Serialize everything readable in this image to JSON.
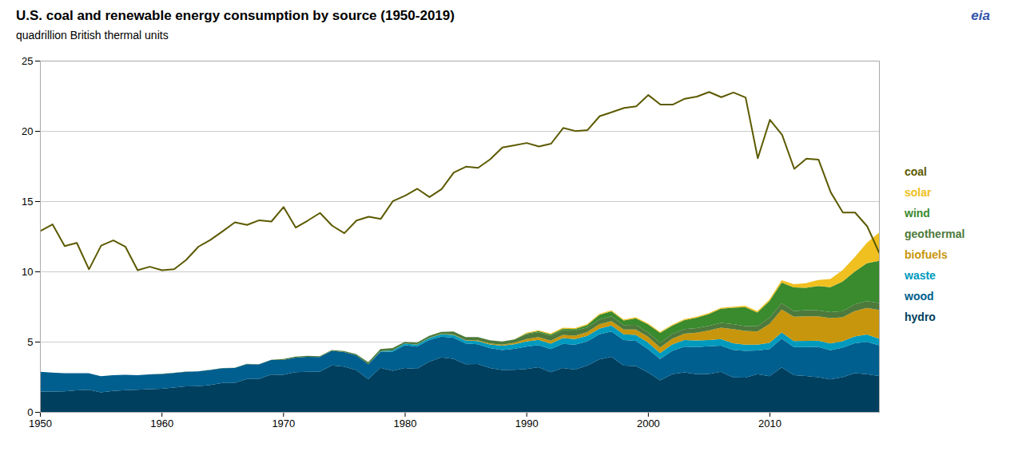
{
  "chart_data": {
    "type": "area",
    "title": "U.S. coal and renewable energy consumption by source (1950-2019)",
    "subtitle": "quadrillion British thermal units",
    "annotations": [
      "eia"
    ],
    "stacked": true,
    "grid": "y",
    "legend": "right",
    "x": [
      1950,
      1951,
      1952,
      1953,
      1954,
      1955,
      1956,
      1957,
      1958,
      1959,
      1960,
      1961,
      1962,
      1963,
      1964,
      1965,
      1966,
      1967,
      1968,
      1969,
      1970,
      1971,
      1972,
      1973,
      1974,
      1975,
      1976,
      1977,
      1978,
      1979,
      1980,
      1981,
      1982,
      1983,
      1984,
      1985,
      1986,
      1987,
      1988,
      1989,
      1990,
      1991,
      1992,
      1993,
      1994,
      1995,
      1996,
      1997,
      1998,
      1999,
      2000,
      2001,
      2002,
      2003,
      2004,
      2005,
      2006,
      2007,
      2008,
      2009,
      2010,
      2011,
      2012,
      2013,
      2014,
      2015,
      2016,
      2017,
      2018,
      2019
    ],
    "xlim": [
      1950,
      2019
    ],
    "xticks": [
      1950,
      1960,
      1970,
      1980,
      1990,
      2000,
      2010
    ],
    "ylim": [
      0,
      25
    ],
    "yticks": [
      0,
      5,
      10,
      15,
      20,
      25
    ],
    "series": [
      {
        "name": "hydro",
        "type": "area",
        "color": "#003f5e",
        "values": [
          1.45,
          1.45,
          1.47,
          1.53,
          1.57,
          1.39,
          1.49,
          1.55,
          1.57,
          1.62,
          1.65,
          1.74,
          1.82,
          1.83,
          1.92,
          2.06,
          2.06,
          2.35,
          2.35,
          2.65,
          2.64,
          2.83,
          2.86,
          2.86,
          3.31,
          3.22,
          2.98,
          2.33,
          3.14,
          2.93,
          3.12,
          3.07,
          3.57,
          3.88,
          3.78,
          3.4,
          3.41,
          3.13,
          2.98,
          3.0,
          3.05,
          3.18,
          2.83,
          3.13,
          3.01,
          3.29,
          3.73,
          3.92,
          3.3,
          3.27,
          2.81,
          2.24,
          2.68,
          2.81,
          2.69,
          2.7,
          2.85,
          2.46,
          2.45,
          2.68,
          2.54,
          3.17,
          2.62,
          2.56,
          2.47,
          2.32,
          2.47,
          2.75,
          2.69,
          2.56
        ]
      },
      {
        "name": "wood",
        "type": "area",
        "color": "#005f8e",
        "values": [
          1.4,
          1.35,
          1.29,
          1.22,
          1.18,
          1.15,
          1.12,
          1.09,
          1.04,
          1.05,
          1.05,
          1.03,
          1.04,
          1.05,
          1.07,
          1.05,
          1.06,
          1.05,
          1.03,
          1.04,
          1.05,
          1.04,
          1.06,
          1.04,
          1.03,
          1.04,
          1.05,
          1.07,
          1.13,
          1.36,
          1.63,
          1.58,
          1.54,
          1.47,
          1.51,
          1.47,
          1.4,
          1.41,
          1.43,
          1.49,
          1.6,
          1.58,
          1.64,
          1.72,
          1.77,
          1.73,
          1.79,
          1.81,
          1.82,
          1.79,
          1.67,
          1.52,
          1.66,
          1.84,
          1.93,
          1.97,
          1.87,
          1.96,
          1.9,
          1.7,
          1.94,
          2.05,
          2.0,
          2.06,
          2.16,
          2.07,
          2.11,
          2.13,
          2.3,
          2.18
        ]
      },
      {
        "name": "waste",
        "type": "area",
        "color": "#009abe",
        "values": [
          0.0,
          0.0,
          0.0,
          0.0,
          0.0,
          0.0,
          0.0,
          0.0,
          0.0,
          0.0,
          0.0,
          0.0,
          0.0,
          0.0,
          0.0,
          0.0,
          0.0,
          0.0,
          0.0,
          0.0,
          0.0,
          0.0,
          0.0,
          0.0,
          0.0,
          0.0,
          0.0,
          0.0,
          0.05,
          0.08,
          0.12,
          0.14,
          0.15,
          0.18,
          0.19,
          0.21,
          0.23,
          0.26,
          0.3,
          0.32,
          0.37,
          0.37,
          0.39,
          0.41,
          0.41,
          0.39,
          0.4,
          0.42,
          0.4,
          0.43,
          0.46,
          0.43,
          0.46,
          0.46,
          0.46,
          0.45,
          0.46,
          0.46,
          0.44,
          0.41,
          0.43,
          0.44,
          0.42,
          0.43,
          0.44,
          0.48,
          0.45,
          0.49,
          0.52,
          0.47
        ]
      },
      {
        "name": "biofuels",
        "type": "area",
        "color": "#c8960c",
        "values": [
          0.0,
          0.0,
          0.0,
          0.0,
          0.0,
          0.0,
          0.0,
          0.0,
          0.0,
          0.0,
          0.0,
          0.0,
          0.0,
          0.0,
          0.0,
          0.0,
          0.0,
          0.0,
          0.0,
          0.0,
          0.0,
          0.0,
          0.0,
          0.0,
          0.0,
          0.0,
          0.0,
          0.0,
          0.0,
          0.0,
          0.0,
          0.01,
          0.01,
          0.02,
          0.03,
          0.04,
          0.06,
          0.07,
          0.08,
          0.1,
          0.16,
          0.2,
          0.21,
          0.22,
          0.24,
          0.27,
          0.31,
          0.32,
          0.34,
          0.38,
          0.41,
          0.4,
          0.42,
          0.46,
          0.56,
          0.67,
          0.81,
          1.02,
          0.97,
          0.94,
          1.36,
          1.63,
          1.73,
          1.76,
          1.73,
          1.8,
          1.71,
          1.81,
          1.89,
          2.05
        ]
      },
      {
        "name": "geothermal",
        "type": "area",
        "color": "#4d7a3c",
        "values": [
          0.0,
          0.0,
          0.0,
          0.0,
          0.0,
          0.0,
          0.0,
          0.0,
          0.0,
          0.0,
          0.01,
          0.01,
          0.01,
          0.01,
          0.01,
          0.02,
          0.02,
          0.02,
          0.02,
          0.02,
          0.07,
          0.07,
          0.07,
          0.07,
          0.07,
          0.07,
          0.09,
          0.13,
          0.15,
          0.17,
          0.11,
          0.13,
          0.14,
          0.15,
          0.21,
          0.21,
          0.22,
          0.23,
          0.23,
          0.23,
          0.34,
          0.34,
          0.35,
          0.35,
          0.36,
          0.33,
          0.35,
          0.33,
          0.32,
          0.33,
          0.32,
          0.33,
          0.33,
          0.33,
          0.33,
          0.33,
          0.35,
          0.35,
          0.35,
          0.37,
          0.43,
          0.45,
          0.41,
          0.43,
          0.43,
          0.43,
          0.44,
          0.47,
          0.48,
          0.49
        ]
      },
      {
        "name": "wind",
        "type": "area",
        "color": "#3a8a2e",
        "values": [
          0.0,
          0.0,
          0.0,
          0.0,
          0.0,
          0.0,
          0.0,
          0.0,
          0.0,
          0.0,
          0.0,
          0.0,
          0.0,
          0.0,
          0.0,
          0.0,
          0.0,
          0.0,
          0.0,
          0.0,
          0.0,
          0.0,
          0.0,
          0.0,
          0.0,
          0.0,
          0.0,
          0.0,
          0.0,
          0.0,
          0.0,
          0.0,
          0.0,
          0.0,
          0.0,
          0.0,
          0.0,
          0.0,
          0.0,
          0.02,
          0.06,
          0.08,
          0.09,
          0.1,
          0.11,
          0.17,
          0.32,
          0.36,
          0.33,
          0.46,
          0.57,
          0.7,
          0.59,
          0.63,
          0.74,
          0.84,
          1.0,
          1.17,
          1.35,
          0.98,
          1.2,
          1.47,
          1.68,
          1.6,
          1.73,
          1.78,
          2.1,
          2.34,
          2.7,
          3.0
        ]
      },
      {
        "name": "solar",
        "type": "area",
        "color": "#f0c020",
        "values": [
          0.0,
          0.0,
          0.0,
          0.0,
          0.0,
          0.0,
          0.0,
          0.0,
          0.0,
          0.0,
          0.0,
          0.0,
          0.0,
          0.0,
          0.0,
          0.0,
          0.0,
          0.0,
          0.0,
          0.0,
          0.0,
          0.0,
          0.0,
          0.0,
          0.0,
          0.0,
          0.0,
          0.0,
          0.0,
          0.0,
          0.0,
          0.0,
          0.0,
          0.0,
          0.0,
          0.0,
          0.0,
          0.0,
          0.0,
          0.0,
          0.06,
          0.06,
          0.07,
          0.07,
          0.07,
          0.07,
          0.07,
          0.07,
          0.07,
          0.07,
          0.07,
          0.07,
          0.07,
          0.07,
          0.07,
          0.07,
          0.07,
          0.07,
          0.09,
          0.09,
          0.11,
          0.16,
          0.23,
          0.32,
          0.43,
          0.58,
          0.81,
          1.02,
          1.45,
          2.0
        ]
      },
      {
        "name": "coal",
        "type": "line",
        "color": "#5c5a00",
        "values": [
          12.91,
          13.38,
          11.83,
          12.06,
          10.18,
          11.87,
          12.24,
          11.78,
          10.11,
          10.36,
          10.11,
          10.18,
          10.85,
          11.79,
          12.28,
          12.89,
          13.52,
          13.34,
          13.67,
          13.58,
          14.61,
          13.15,
          13.65,
          14.19,
          13.28,
          12.75,
          13.65,
          13.92,
          13.77,
          15.04,
          15.42,
          15.91,
          15.32,
          15.89,
          17.07,
          17.48,
          17.4,
          18.01,
          18.85,
          19.0,
          19.17,
          18.92,
          19.12,
          20.24,
          20.02,
          20.09,
          21.08,
          21.36,
          21.66,
          21.77,
          22.58,
          21.9,
          21.9,
          22.32,
          22.47,
          22.8,
          22.43,
          22.76,
          22.41,
          18.08,
          20.82,
          19.75,
          17.33,
          18.05,
          17.98,
          15.66,
          14.22,
          14.22,
          13.24,
          11.33
        ]
      }
    ]
  }
}
